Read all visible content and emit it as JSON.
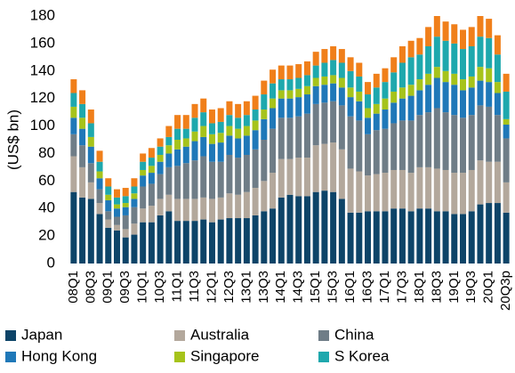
{
  "chart_data": {
    "type": "stacked_bar",
    "y_label": "(US$ bn)",
    "categories": [
      "08Q1",
      null,
      "08Q3",
      null,
      "09Q1",
      null,
      "09Q3",
      null,
      "10Q1",
      null,
      "10Q3",
      null,
      "11Q1",
      null,
      "11Q3",
      null,
      "12Q1",
      null,
      "12Q3",
      null,
      "13Q1",
      null,
      "13Q3",
      null,
      "14Q1",
      null,
      "14Q3",
      null,
      "15Q1",
      null,
      "15Q3",
      null,
      "16Q1",
      null,
      "16Q3",
      null,
      "17Q1",
      null,
      "17Q3",
      null,
      "18Q1",
      null,
      "18Q3",
      null,
      "19Q1",
      null,
      "19Q3",
      null,
      "20Q1",
      null,
      "20Q3p"
    ],
    "series": [
      {
        "name": "Japan",
        "color": "#0d4468",
        "values": [
          52,
          48,
          47,
          36,
          26,
          24,
          19,
          21,
          30,
          30,
          35,
          38,
          31,
          31,
          31,
          32,
          30,
          32,
          33,
          33,
          33,
          35,
          38,
          40,
          48,
          50,
          49,
          49,
          52,
          53,
          52,
          47,
          37,
          37,
          38,
          38,
          38,
          40,
          40,
          38,
          40,
          40,
          38,
          38,
          36,
          36,
          38,
          43,
          44,
          44,
          37
        ]
      },
      {
        "name": "Australia",
        "color": "#b3a89c",
        "values": [
          26,
          22,
          12,
          8,
          6,
          4,
          6,
          8,
          10,
          12,
          12,
          12,
          16,
          16,
          16,
          16,
          17,
          16,
          18,
          17,
          19,
          20,
          22,
          26,
          28,
          26,
          28,
          28,
          34,
          34,
          36,
          36,
          32,
          30,
          26,
          27,
          28,
          28,
          28,
          28,
          30,
          30,
          31,
          30,
          30,
          30,
          30,
          32,
          30,
          30,
          22
        ]
      },
      {
        "name": "China",
        "color": "#6f7d87",
        "values": [
          16,
          16,
          14,
          10,
          6,
          6,
          10,
          12,
          16,
          16,
          18,
          20,
          24,
          26,
          28,
          30,
          27,
          26,
          28,
          27,
          27,
          28,
          30,
          32,
          30,
          30,
          30,
          32,
          30,
          30,
          30,
          32,
          38,
          37,
          30,
          32,
          32,
          34,
          36,
          38,
          38,
          40,
          44,
          42,
          42,
          40,
          40,
          40,
          40,
          34,
          32
        ]
      },
      {
        "name": "Hong Kong",
        "color": "#1f78b8",
        "values": [
          12,
          12,
          12,
          8,
          8,
          6,
          6,
          6,
          8,
          8,
          9,
          10,
          12,
          12,
          14,
          14,
          13,
          14,
          14,
          14,
          14,
          14,
          15,
          15,
          14,
          14,
          14,
          14,
          13,
          13,
          13,
          13,
          14,
          14,
          12,
          12,
          14,
          15,
          16,
          18,
          18,
          20,
          22,
          22,
          22,
          20,
          20,
          18,
          18,
          16,
          10
        ]
      },
      {
        "name": "Singapore",
        "color": "#a6c31b",
        "values": [
          8,
          8,
          7,
          5,
          4,
          3,
          3,
          4,
          4,
          5,
          5,
          6,
          7,
          6,
          7,
          8,
          7,
          7,
          7,
          7,
          7,
          7,
          7,
          7,
          6,
          6,
          6,
          6,
          6,
          6,
          6,
          7,
          7,
          7,
          7,
          7,
          8,
          8,
          8,
          8,
          8,
          8,
          8,
          8,
          8,
          8,
          8,
          10,
          10,
          8,
          4
        ]
      },
      {
        "name": "S Korea",
        "color": "#1ea8ad",
        "values": [
          10,
          10,
          10,
          7,
          6,
          5,
          5,
          5,
          6,
          6,
          6,
          6,
          8,
          7,
          10,
          10,
          8,
          8,
          8,
          8,
          8,
          8,
          11,
          11,
          8,
          8,
          8,
          8,
          9,
          10,
          11,
          11,
          12,
          11,
          10,
          12,
          12,
          14,
          18,
          20,
          18,
          20,
          22,
          22,
          22,
          22,
          22,
          22,
          22,
          20,
          20
        ]
      },
      {
        "color": "#f07f1a",
        "values": [
          10,
          10,
          10,
          8,
          6,
          6,
          6,
          6,
          6,
          7,
          6,
          8,
          10,
          10,
          10,
          10,
          10,
          10,
          10,
          10,
          10,
          10,
          10,
          10,
          10,
          10,
          10,
          10,
          10,
          10,
          10,
          10,
          10,
          10,
          9,
          10,
          10,
          11,
          12,
          12,
          12,
          14,
          15,
          14,
          14,
          14,
          14,
          15,
          14,
          14,
          13
        ]
      }
    ],
    "ylim": [
      0,
      180
    ],
    "yticks": [
      0,
      20,
      40,
      60,
      80,
      100,
      120,
      140,
      160,
      180
    ]
  }
}
